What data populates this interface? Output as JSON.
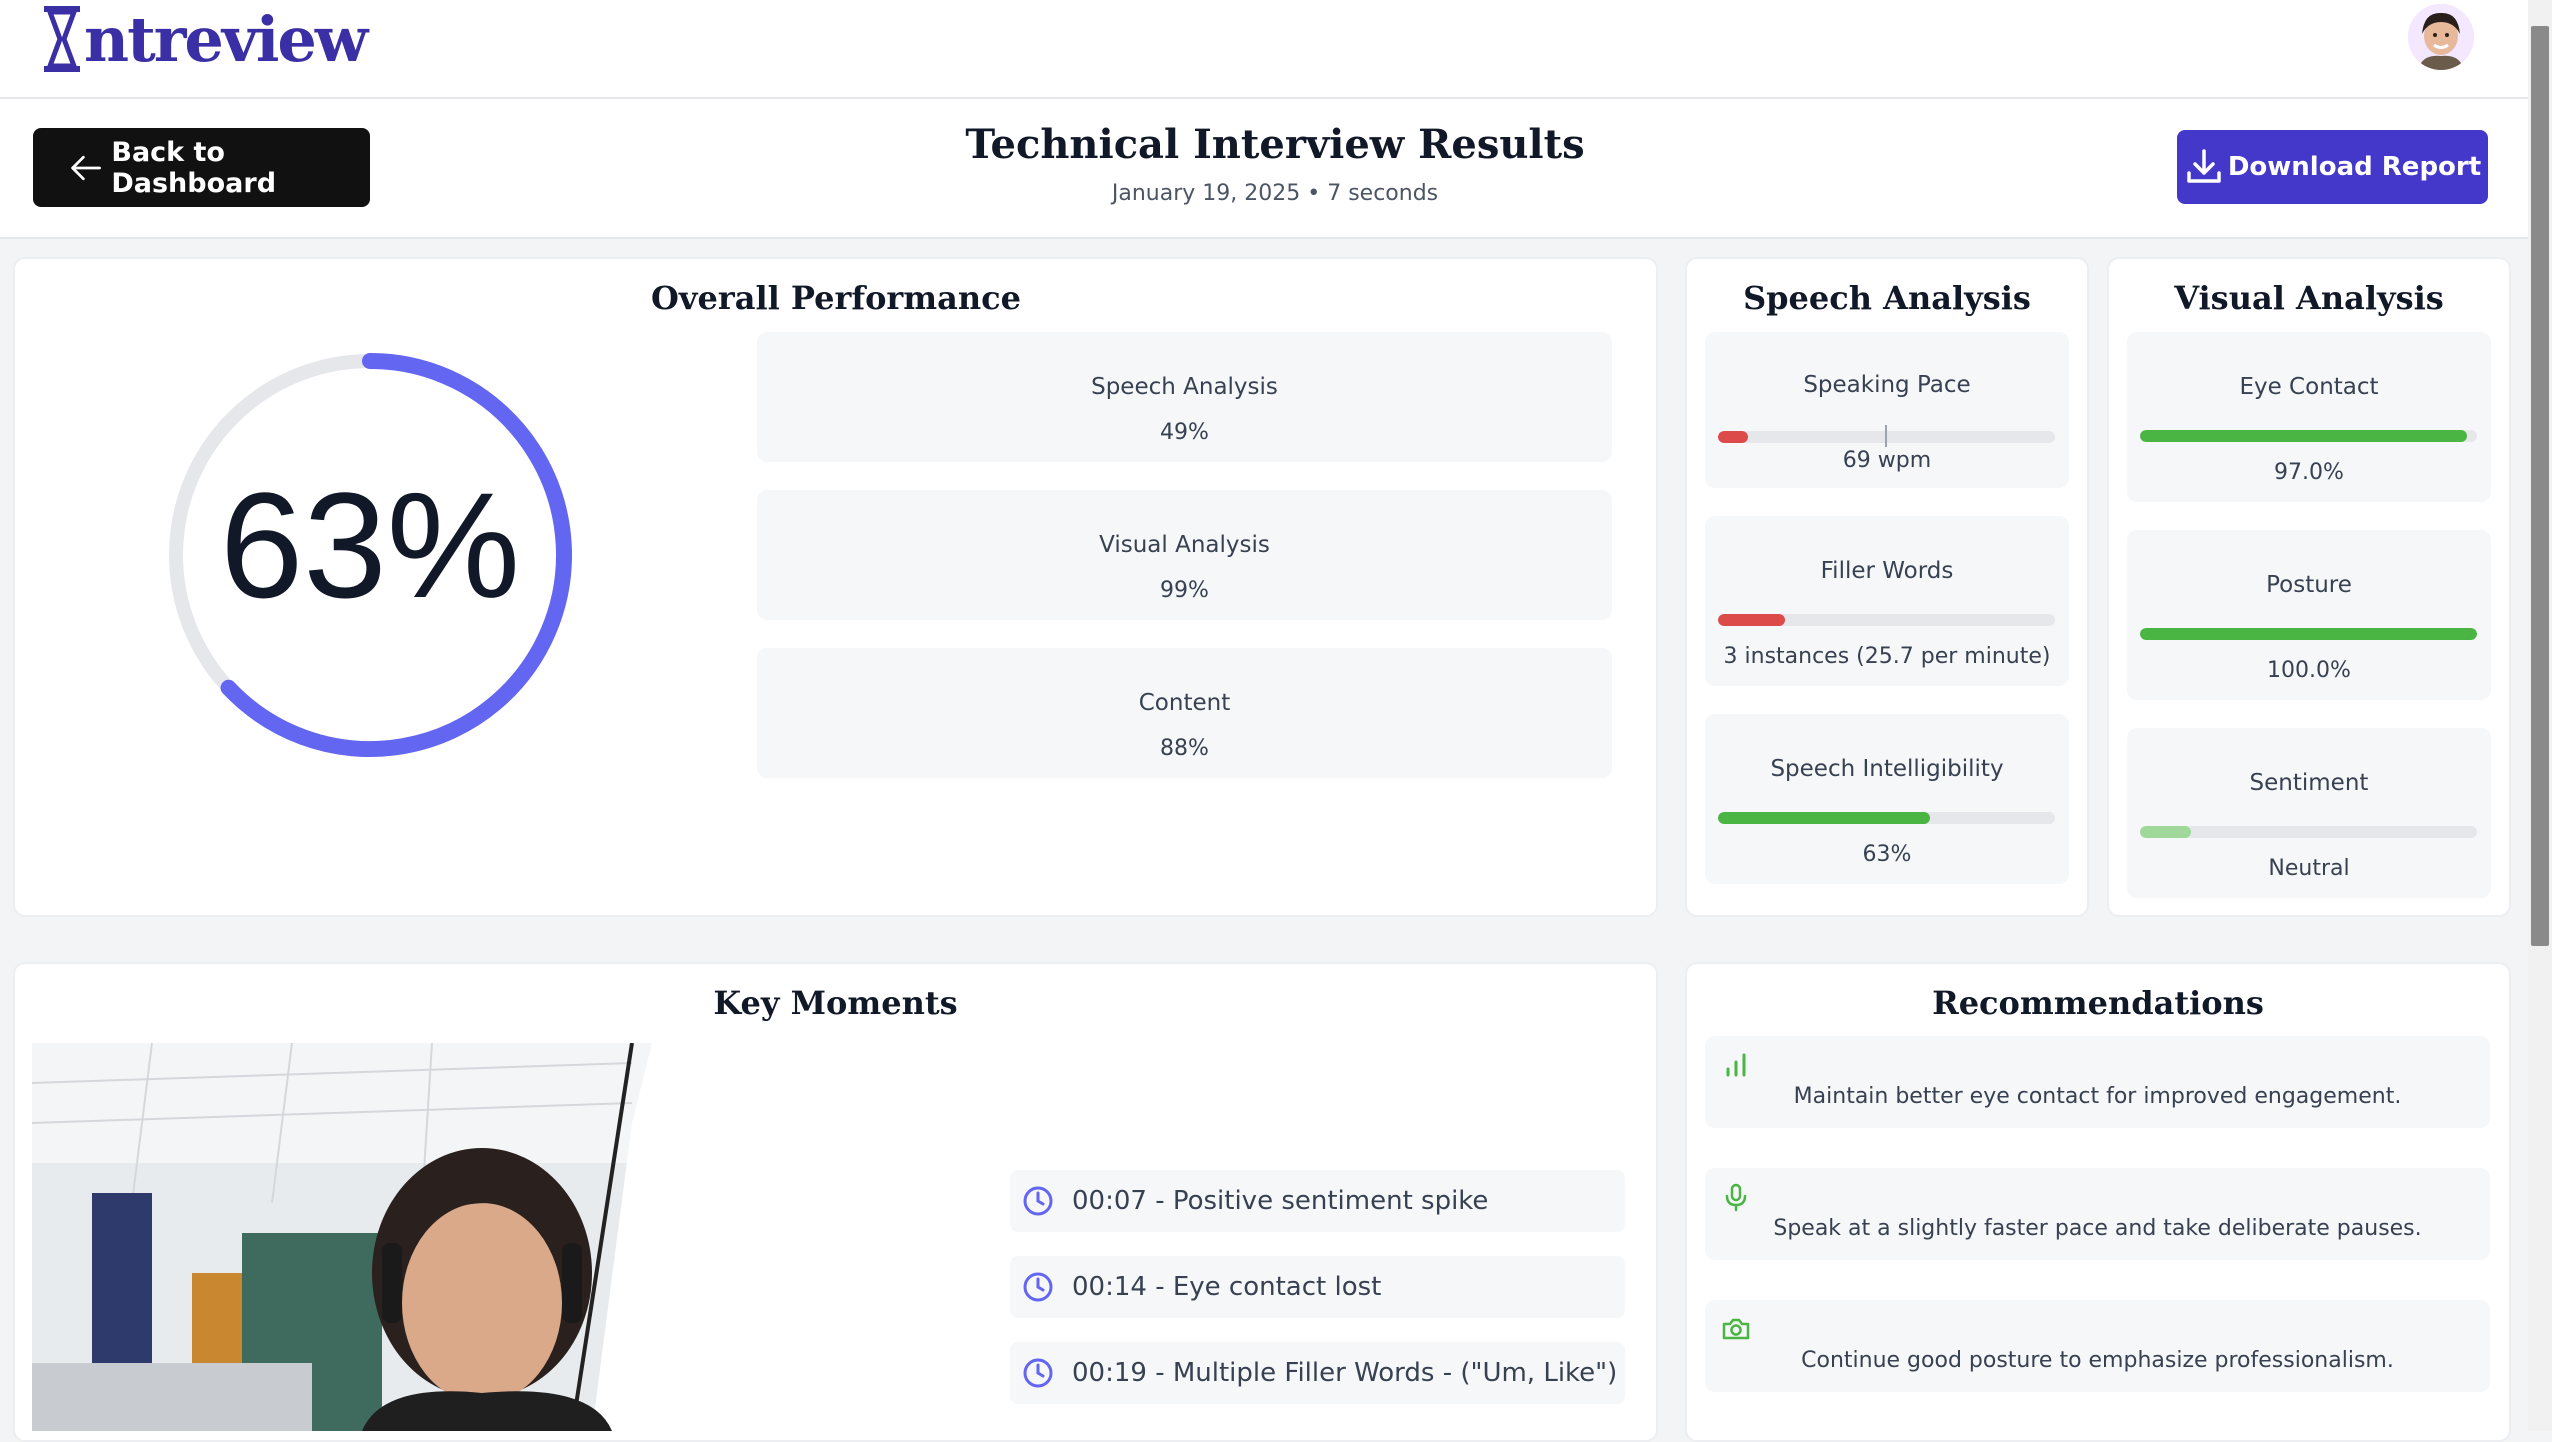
{
  "app": {
    "logo_text": "ntreview"
  },
  "header": {
    "back_label": "Back to Dashboard",
    "title": "Technical Interview Results",
    "subtitle": "January 19, 2025 • 7 seconds",
    "download_label": "Download Report"
  },
  "overall": {
    "title": "Overall Performance",
    "score_text": "63%",
    "score": 0.63,
    "accent_color": "#6366f1",
    "metrics": [
      {
        "label": "Speech Analysis",
        "value": "49%"
      },
      {
        "label": "Visual Analysis",
        "value": "99%"
      },
      {
        "label": "Content",
        "value": "88%"
      }
    ]
  },
  "speech": {
    "title": "Speech Analysis",
    "items": [
      {
        "label": "Speaking Pace",
        "value": "69 wpm",
        "fill": 0.09,
        "color": "#dc4a4a"
      },
      {
        "label": "Filler Words",
        "value": "3 instances (25.7 per minute)",
        "fill": 0.2,
        "color": "#dc4a4a"
      },
      {
        "label": "Speech Intelligibility",
        "value": "63%",
        "fill": 0.63,
        "color": "#4bb543"
      }
    ]
  },
  "visual": {
    "title": "Visual Analysis",
    "items": [
      {
        "label": "Eye Contact",
        "value": "97.0%",
        "fill": 0.97,
        "color": "#4bb543"
      },
      {
        "label": "Posture",
        "value": "100.0%",
        "fill": 1.0,
        "color": "#4bb543"
      },
      {
        "label": "Sentiment",
        "value": "Neutral",
        "fill": 0.15,
        "color": "#9fd89a"
      }
    ]
  },
  "key_moments": {
    "title": "Key Moments",
    "items": [
      {
        "text": "00:07 - Positive sentiment spike"
      },
      {
        "text": "00:14 - Eye contact lost"
      },
      {
        "text": "00:19 - Multiple Filler Words - (\"Um, Like\")"
      }
    ]
  },
  "recommendations": {
    "title": "Recommendations",
    "items": [
      {
        "icon": "bar-chart-icon",
        "text": "Maintain better eye contact for improved engagement."
      },
      {
        "icon": "microphone-icon",
        "text": "Speak at a slightly faster pace and take deliberate pauses."
      },
      {
        "icon": "camera-icon",
        "text": "Continue good posture to emphasize professionalism."
      }
    ]
  }
}
